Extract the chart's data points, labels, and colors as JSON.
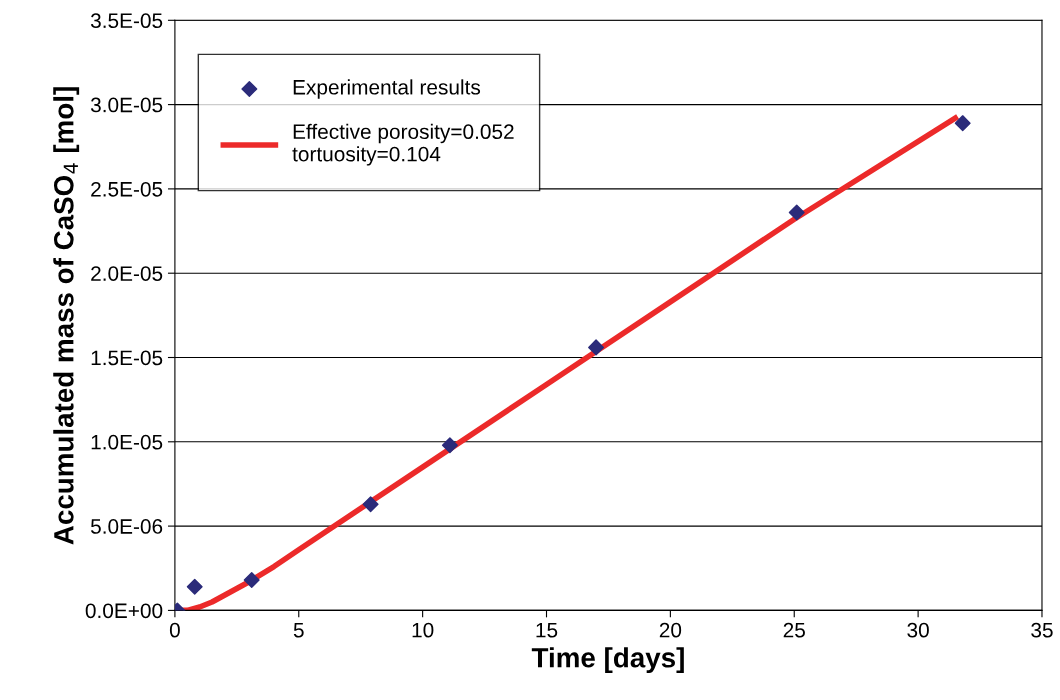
{
  "chart_data": {
    "type": "scatter",
    "xlabel": "Time [days]",
    "ylabel": "Accumulated mass of CaSO$_{4}$ [mol]",
    "xlim": [
      0,
      35
    ],
    "xticks": [
      0,
      5,
      10,
      15,
      20,
      25,
      30,
      35
    ],
    "ylim": [
      0,
      3.5e-05
    ],
    "yticks": [
      {
        "value": 0,
        "label": "0.0E+00"
      },
      {
        "value": 5e-06,
        "label": "5.0E-06"
      },
      {
        "value": 1e-05,
        "label": "1.0E-05"
      },
      {
        "value": 1.5e-05,
        "label": "1.5E-05"
      },
      {
        "value": 2e-05,
        "label": "2.0E-05"
      },
      {
        "value": 2.5e-05,
        "label": "2.5E-05"
      },
      {
        "value": 3e-05,
        "label": "3.0E-05"
      },
      {
        "value": 3.5e-05,
        "label": "3.5E-05"
      }
    ],
    "grid": "y",
    "legend": "top left",
    "series": [
      {
        "name": "Experimental results",
        "marker": "diamond",
        "color": "#2b2b7a",
        "x": [
          0.1,
          0.8,
          3.1,
          7.9,
          11.1,
          17.0,
          25.1,
          31.8
        ],
        "values": [
          0,
          1.4e-06,
          1.8e-06,
          6.3e-06,
          9.8e-06,
          1.56e-05,
          2.36e-05,
          2.89e-05
        ]
      },
      {
        "name": "Effective porosity=0.052\ntortuosity=0.104",
        "type": "line",
        "marker": "none",
        "line_style": "solid",
        "color": "#ec2a2a",
        "x": [
          0,
          0.5,
          1,
          1.5,
          2,
          3,
          4,
          5,
          10,
          15,
          20,
          25,
          31.5
        ],
        "values": [
          0,
          0,
          2e-07,
          5e-07,
          9e-07,
          1.7e-06,
          2.6e-06,
          3.6e-06,
          8.5e-06,
          1.34e-05,
          1.83e-05,
          2.32e-05,
          2.92e-05
        ]
      }
    ]
  }
}
